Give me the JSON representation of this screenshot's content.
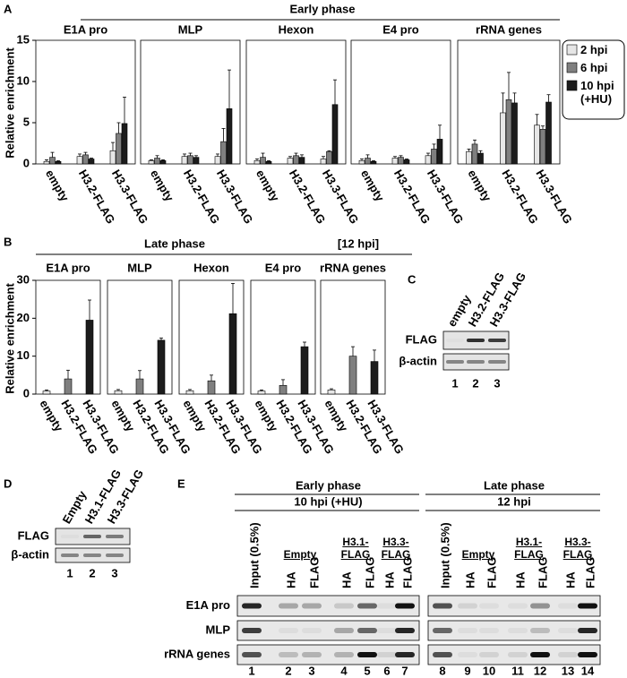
{
  "chart_data": [
    {
      "type": "bar",
      "panel": "A",
      "title": "Early phase",
      "ylabel": "Relative enrichment",
      "ylim": [
        0,
        15
      ],
      "yticks": [
        0,
        5,
        10,
        15
      ],
      "categories": [
        "empty",
        "H3.2-FLAG",
        "H3.3-FLAG"
      ],
      "series": [
        {
          "name": "2 hpi",
          "color": "#e6e6e6"
        },
        {
          "name": "6 hpi",
          "color": "#7f7f7f"
        },
        {
          "name": "10 hpi (+HU)",
          "color": "#1c1c1c"
        }
      ],
      "subplots": [
        {
          "title": "E1A pro",
          "values": [
            [
              0.3,
              0.9,
              1.6
            ],
            [
              0.8,
              1.1,
              3.7
            ],
            [
              0.3,
              0.6,
              4.9
            ]
          ],
          "errors": [
            [
              0.2,
              0.3,
              1.0
            ],
            [
              0.6,
              0.3,
              1.3
            ],
            [
              0.1,
              0.1,
              3.2
            ]
          ]
        },
        {
          "title": "MLP",
          "values": [
            [
              0.4,
              0.9,
              0.9
            ],
            [
              0.7,
              1.0,
              2.7
            ],
            [
              0.4,
              0.8,
              6.7
            ]
          ],
          "errors": [
            [
              0.1,
              0.3,
              0.3
            ],
            [
              0.3,
              0.3,
              1.6
            ],
            [
              0.1,
              0.2,
              4.7
            ]
          ]
        },
        {
          "title": "Hexon",
          "values": [
            [
              0.4,
              0.7,
              0.6
            ],
            [
              0.8,
              1.0,
              1.5
            ],
            [
              0.3,
              0.8,
              7.2
            ]
          ],
          "errors": [
            [
              0.2,
              0.2,
              0.3
            ],
            [
              0.5,
              0.3,
              0.1
            ],
            [
              0.1,
              0.3,
              3.0
            ]
          ]
        },
        {
          "title": "E4 pro",
          "values": [
            [
              0.4,
              0.7,
              1.0
            ],
            [
              0.7,
              0.8,
              1.8
            ],
            [
              0.3,
              0.5,
              3.0
            ]
          ],
          "errors": [
            [
              0.2,
              0.2,
              0.3
            ],
            [
              0.4,
              0.2,
              0.6
            ],
            [
              0.1,
              0.1,
              1.7
            ]
          ]
        },
        {
          "title": "rRNA genes",
          "values": [
            [
              1.5,
              6.2,
              4.7
            ],
            [
              2.4,
              7.8,
              4.2
            ],
            [
              1.3,
              7.4,
              7.5
            ]
          ],
          "errors": [
            [
              0.3,
              2.4,
              1.3
            ],
            [
              0.5,
              3.3,
              0.4
            ],
            [
              0.3,
              1.2,
              0.9
            ]
          ]
        }
      ]
    },
    {
      "type": "bar",
      "panel": "B",
      "title": "Late phase",
      "subtitle": "[12 hpi]",
      "ylabel": "Relative enrichment",
      "ylim": [
        0,
        30
      ],
      "yticks": [
        0,
        10,
        20,
        30
      ],
      "categories": [
        "empty",
        "H3.2-FLAG",
        "H3.3-FLAG"
      ],
      "colors": [
        "#e6e6e6",
        "#7f7f7f",
        "#1c1c1c"
      ],
      "subplots": [
        {
          "title": "E1A pro",
          "values": [
            0.8,
            4,
            19.5
          ],
          "errors": [
            0.3,
            2.3,
            5.3
          ]
        },
        {
          "title": "MLP",
          "values": [
            0.9,
            4,
            14.2
          ],
          "errors": [
            0.3,
            2.2,
            0.6
          ]
        },
        {
          "title": "Hexon",
          "values": [
            0.9,
            3.5,
            21.2
          ],
          "errors": [
            0.3,
            1.5,
            8
          ]
        },
        {
          "title": "E4 pro",
          "values": [
            0.8,
            2.3,
            12.5
          ],
          "errors": [
            0.3,
            1.5,
            1.2
          ]
        },
        {
          "title": "rRNA genes",
          "values": [
            1.1,
            10,
            8.6
          ],
          "errors": [
            0.3,
            2.5,
            3
          ]
        }
      ]
    }
  ],
  "blot_c": {
    "label": "C",
    "columns": [
      "empty",
      "H3.2-FLAG",
      "H3.3-FLAG"
    ],
    "rows": [
      "FLAG",
      "β-actin"
    ],
    "lanes": [
      "1",
      "2",
      "3"
    ]
  },
  "blot_d": {
    "label": "D",
    "columns": [
      "Empty",
      "H3.1-FLAG",
      "H3.3-FLAG"
    ],
    "rows": [
      "FLAG",
      "β-actin"
    ],
    "lanes": [
      "1",
      "2",
      "3"
    ]
  },
  "blot_e": {
    "label": "E",
    "groups": [
      {
        "title": "Early phase",
        "subtitle": "10 hpi (+HU)",
        "input": "Input (0.5%)",
        "samples": [
          "Empty",
          "H3.1-FLAG",
          "H3.3-FLAG"
        ]
      },
      {
        "title": "Late phase",
        "subtitle": "12 hpi",
        "input": "Input (0.5%)",
        "samples": [
          "Empty",
          "H3.1-FLAG",
          "H3.3-FLAG"
        ]
      }
    ],
    "antibodies": [
      "HA",
      "FLAG"
    ],
    "rows": [
      "E1A pro",
      "MLP",
      "rRNA genes"
    ],
    "lanes": [
      "1",
      "2",
      "3",
      "4",
      "5",
      "6",
      "7",
      "8",
      "9",
      "10",
      "11",
      "12",
      "13",
      "14"
    ]
  }
}
